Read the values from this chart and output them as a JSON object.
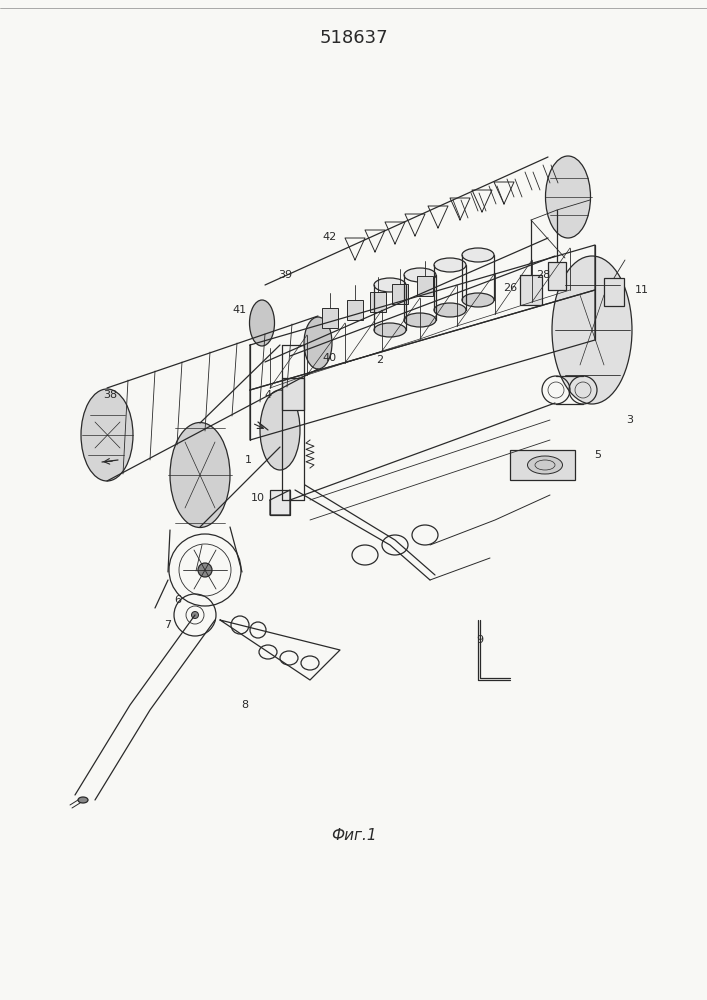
{
  "title": "518637",
  "caption": "Фиг.1",
  "bg_color": "#f8f8f5",
  "line_color": "#2a2a2a",
  "lw": 0.9
}
